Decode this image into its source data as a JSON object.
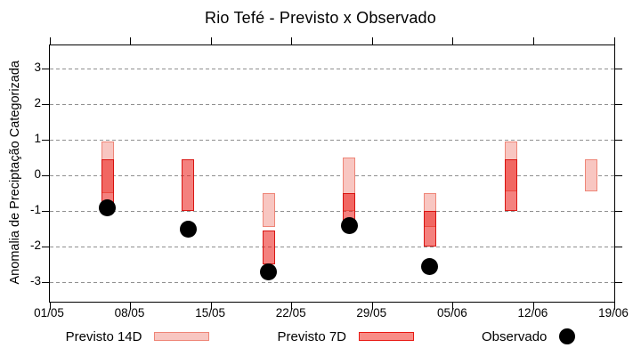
{
  "chart_data": {
    "type": "candlestick",
    "title": "Rio Tefé - Previsto x Observado",
    "ylabel": "Anomalia de Preciptação Categorizada",
    "xlabel": "",
    "x_tick_labels": [
      "01/05",
      "08/05",
      "15/05",
      "22/05",
      "29/05",
      "05/06",
      "12/06",
      "19/06"
    ],
    "x_tick_days": [
      0,
      7,
      14,
      21,
      28,
      35,
      42,
      49
    ],
    "y_ticks": [
      3,
      2,
      1,
      0,
      -1,
      -2,
      -3
    ],
    "ylim": [
      -3.55,
      3.65
    ],
    "xlim_days": [
      0,
      49
    ],
    "grid": "horizontal-dashed",
    "legend_position": "bottom-center",
    "series": [
      {
        "name": "Previsto 14D",
        "type": "range-box",
        "fill": "#f8c6c1",
        "border": "#ee8577"
      },
      {
        "name": "Previsto 7D",
        "type": "range-box",
        "fill": "#f88d87",
        "border": "#e81913"
      },
      {
        "name": "Observado",
        "type": "point",
        "color": "#000000"
      }
    ],
    "points": [
      {
        "date": "06/05",
        "day": 5,
        "previsto_14d": [
          -0.5,
          0.95
        ],
        "previsto_7d": [
          -1.0,
          0.45
        ],
        "observado": -0.9
      },
      {
        "date": "13/05",
        "day": 12,
        "previsto_14d": null,
        "previsto_7d": [
          -1.0,
          0.45
        ],
        "observado": -1.5
      },
      {
        "date": "20/05",
        "day": 19,
        "previsto_14d": [
          -1.45,
          -0.5
        ],
        "previsto_7d": [
          -2.5,
          -1.55
        ],
        "observado": -2.7
      },
      {
        "date": "27/05",
        "day": 26,
        "previsto_14d": [
          -1.0,
          0.5
        ],
        "previsto_7d": [
          -1.3,
          -0.5
        ],
        "observado": -1.4
      },
      {
        "date": "03/06",
        "day": 33,
        "previsto_14d": [
          -1.45,
          -0.5
        ],
        "previsto_7d": [
          -2.0,
          -1.0
        ],
        "observado": -2.55
      },
      {
        "date": "10/06",
        "day": 40,
        "previsto_14d": [
          -0.45,
          0.95
        ],
        "previsto_7d": [
          -1.0,
          0.45
        ],
        "observado": null
      },
      {
        "date": "17/06",
        "day": 47,
        "previsto_14d": [
          -0.45,
          0.45
        ],
        "previsto_7d": null,
        "observado": null
      }
    ],
    "colors": {
      "p14_fill": "#f8c6c1",
      "p14_border": "#ee8577",
      "p7_overlay": "rgba(235,25,20,0.55)",
      "p7_border": "rgba(214,10,8,0.9)",
      "observed": "#000000",
      "grid": "#8f8f8f",
      "axis": "#000000"
    }
  },
  "legend": {
    "items": [
      {
        "label": "Previsto 14D"
      },
      {
        "label": "Previsto 7D"
      },
      {
        "label": "Observado"
      }
    ]
  }
}
